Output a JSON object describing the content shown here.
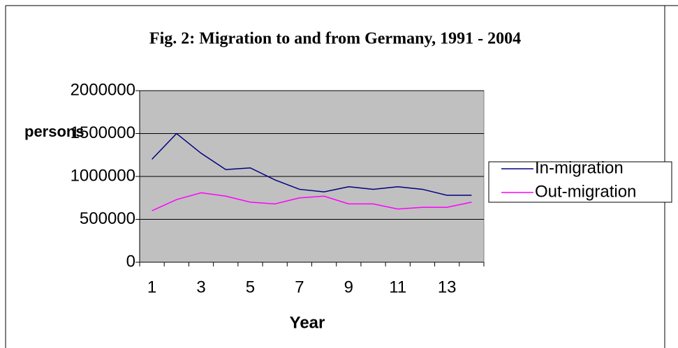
{
  "chart_data": {
    "type": "line",
    "title": "Fig. 2: Migration to and from Germany, 1991 - 2004",
    "x_label": "Year",
    "y_label": "persons",
    "categories": [
      1,
      null,
      3,
      null,
      5,
      null,
      7,
      null,
      9,
      null,
      11,
      null,
      13,
      null
    ],
    "series": [
      {
        "name": "In-migration",
        "color": "#000080",
        "values": [
          1200000,
          1500000,
          1270000,
          1080000,
          1100000,
          960000,
          850000,
          820000,
          880000,
          850000,
          880000,
          850000,
          780000,
          780000
        ]
      },
      {
        "name": "Out-migration",
        "color": "#ff00ff",
        "values": [
          600000,
          730000,
          810000,
          770000,
          700000,
          680000,
          750000,
          770000,
          680000,
          680000,
          620000,
          640000,
          640000,
          700000
        ]
      }
    ],
    "ylim": [
      0,
      2000000
    ],
    "yticks": [
      0,
      500000,
      1000000,
      1500000,
      2000000
    ],
    "grid": true,
    "legend": "right"
  }
}
